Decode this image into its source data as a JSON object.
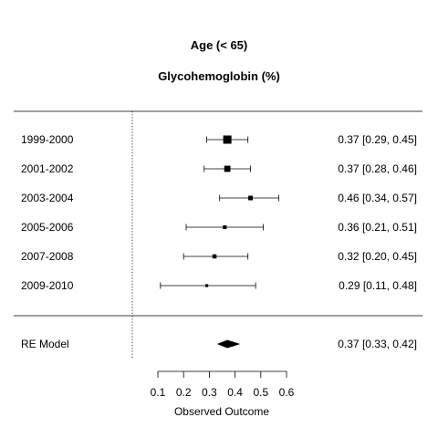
{
  "chart_data": {
    "type": "forest",
    "title": "Age (< 65)",
    "subtitle": "Glycohemoglobin (%)",
    "xlabel": "Observed Outcome",
    "xlim": [
      0.1,
      0.6
    ],
    "xticks": [
      0.1,
      0.2,
      0.3,
      0.4,
      0.5,
      0.6
    ],
    "xtick_labels": [
      "0.1",
      "0.2",
      "0.3",
      "0.4",
      "0.5",
      "0.6"
    ],
    "reference_line": 0,
    "studies": [
      {
        "label": "1999-2000",
        "estimate": 0.37,
        "lower": 0.29,
        "upper": 0.45,
        "text": "0.37 [0.29, 0.45]",
        "weight": 1.0
      },
      {
        "label": "2001-2002",
        "estimate": 0.37,
        "lower": 0.28,
        "upper": 0.46,
        "text": "0.37 [0.28, 0.46]",
        "weight": 0.75
      },
      {
        "label": "2003-2004",
        "estimate": 0.46,
        "lower": 0.34,
        "upper": 0.57,
        "text": "0.46 [0.34, 0.57]",
        "weight": 0.55
      },
      {
        "label": "2005-2006",
        "estimate": 0.36,
        "lower": 0.21,
        "upper": 0.51,
        "text": "0.36 [0.21, 0.51]",
        "weight": 0.45
      },
      {
        "label": "2007-2008",
        "estimate": 0.32,
        "lower": 0.2,
        "upper": 0.45,
        "text": "0.32 [0.20, 0.45]",
        "weight": 0.5
      },
      {
        "label": "2009-2010",
        "estimate": 0.29,
        "lower": 0.11,
        "upper": 0.48,
        "text": "0.29 [0.11, 0.48]",
        "weight": 0.35
      }
    ],
    "summary": {
      "label": "RE Model",
      "estimate": 0.37,
      "lower": 0.33,
      "upper": 0.42,
      "text": "0.37 [0.33, 0.42]"
    }
  }
}
